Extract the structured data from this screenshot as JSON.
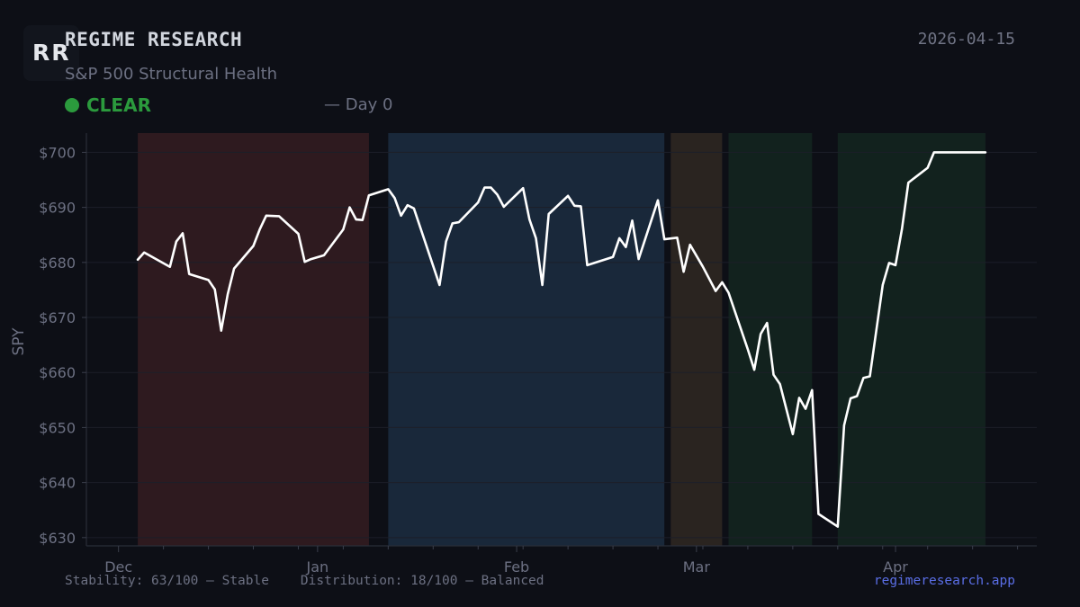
{
  "header": {
    "logo_text": "RR",
    "title": "REGIME RESEARCH",
    "subtitle": "S&P 500 Structural Health",
    "status": "CLEAR",
    "day": "— Day 0",
    "date": "2026-04-15"
  },
  "footer": {
    "stats": "Stability: 63/100 — Stable    Distribution: 18/100 — Balanced",
    "site": "regimeresearch.app"
  },
  "colors": {
    "background": "#0d0f16",
    "line": "#ffffff",
    "clear": "#2b9a3d",
    "link": "#5a6ee6"
  },
  "chart_data": {
    "type": "line",
    "ylabel": "SPY",
    "ylim": [
      628.5,
      703.5
    ],
    "yticks": [
      630,
      640,
      650,
      660,
      670,
      680,
      690,
      700
    ],
    "ytick_labels": [
      "$630",
      "$640",
      "$650",
      "$660",
      "$670",
      "$680",
      "$690",
      "$700"
    ],
    "xlim": [
      "2025-11-26",
      "2026-04-23"
    ],
    "xticks": [
      "2025-12-01",
      "2026-01-01",
      "2026-02-01",
      "2026-03-01",
      "2026-04-01"
    ],
    "xtick_labels": [
      "Dec",
      "Jan",
      "Feb",
      "Mar",
      "Apr"
    ],
    "grid": true,
    "regimes": [
      {
        "start": "2025-12-04",
        "end": "2026-01-09",
        "color": "#2e1a1f"
      },
      {
        "start": "2026-01-12",
        "end": "2026-02-24",
        "color": "#19283a"
      },
      {
        "start": "2026-02-25",
        "end": "2026-03-05",
        "color": "#2a2420"
      },
      {
        "start": "2026-03-06",
        "end": "2026-03-19",
        "color": "#12221e"
      },
      {
        "start": "2026-03-23",
        "end": "2026-04-15",
        "color": "#12221e"
      }
    ],
    "series": [
      {
        "x": [
          "2025-12-04",
          "2025-12-05",
          "2025-12-09",
          "2025-12-10",
          "2025-12-11",
          "2025-12-12",
          "2025-12-15",
          "2025-12-16",
          "2025-12-17",
          "2025-12-18",
          "2025-12-19",
          "2025-12-22",
          "2025-12-23",
          "2025-12-24",
          "2025-12-26",
          "2025-12-29",
          "2025-12-30",
          "2025-12-31",
          "2026-01-02",
          "2026-01-05",
          "2026-01-06",
          "2026-01-07",
          "2026-01-08",
          "2026-01-09",
          "2026-01-12",
          "2026-01-13",
          "2026-01-14",
          "2026-01-15",
          "2026-01-16",
          "2026-01-20",
          "2026-01-21",
          "2026-01-22",
          "2026-01-23",
          "2026-01-26",
          "2026-01-27",
          "2026-01-28",
          "2026-01-29",
          "2026-01-30",
          "2026-02-02",
          "2026-02-03",
          "2026-02-04",
          "2026-02-05",
          "2026-02-06",
          "2026-02-09",
          "2026-02-10",
          "2026-02-11",
          "2026-02-12",
          "2026-02-16",
          "2026-02-17",
          "2026-02-18",
          "2026-02-19",
          "2026-02-20",
          "2026-02-23",
          "2026-02-24",
          "2026-02-26",
          "2026-02-27",
          "2026-02-28",
          "2026-03-02",
          "2026-03-04",
          "2026-03-05",
          "2026-03-06",
          "2026-03-09",
          "2026-03-10",
          "2026-03-11",
          "2026-03-12",
          "2026-03-13",
          "2026-03-14",
          "2026-03-16",
          "2026-03-17",
          "2026-03-18",
          "2026-03-19",
          "2026-03-20",
          "2026-03-23",
          "2026-03-24",
          "2026-03-25",
          "2026-03-26",
          "2026-03-27",
          "2026-03-28",
          "2026-03-30",
          "2026-03-31",
          "2026-04-01",
          "2026-04-02",
          "2026-04-03",
          "2026-04-06",
          "2026-04-07",
          "2026-04-08",
          "2026-04-09",
          "2026-04-10",
          "2026-04-13",
          "2026-04-14",
          "2026-04-15"
        ],
        "values": [
          680.5,
          681.8,
          679.2,
          683.8,
          685.3,
          677.9,
          676.8,
          675.1,
          667.6,
          674.2,
          678.9,
          683.0,
          686.0,
          688.5,
          688.4,
          685.2,
          680.1,
          680.6,
          681.3,
          686.0,
          690.0,
          687.8,
          687.7,
          692.2,
          693.3,
          691.7,
          688.5,
          690.4,
          689.8,
          675.9,
          683.8,
          687.1,
          687.3,
          690.9,
          693.6,
          693.6,
          692.3,
          690.1,
          693.5,
          687.8,
          684.4,
          675.9,
          688.8,
          692.1,
          690.3,
          690.2,
          679.5,
          681.0,
          684.4,
          682.8,
          687.6,
          680.6,
          691.3,
          684.2,
          684.5,
          678.3,
          683.2,
          679.2,
          674.8,
          676.4,
          674.5,
          664.2,
          660.5,
          667.0,
          669.0,
          659.6,
          657.9,
          648.8,
          655.4,
          653.4,
          656.8,
          634.3,
          632.0,
          650.4,
          655.3,
          655.7,
          659.0,
          659.3,
          675.9,
          679.9,
          679.5,
          686.1,
          694.5,
          697.2,
          700.0,
          700.0,
          700.0,
          700.0,
          700.0,
          700.0,
          700.0
        ]
      }
    ]
  }
}
